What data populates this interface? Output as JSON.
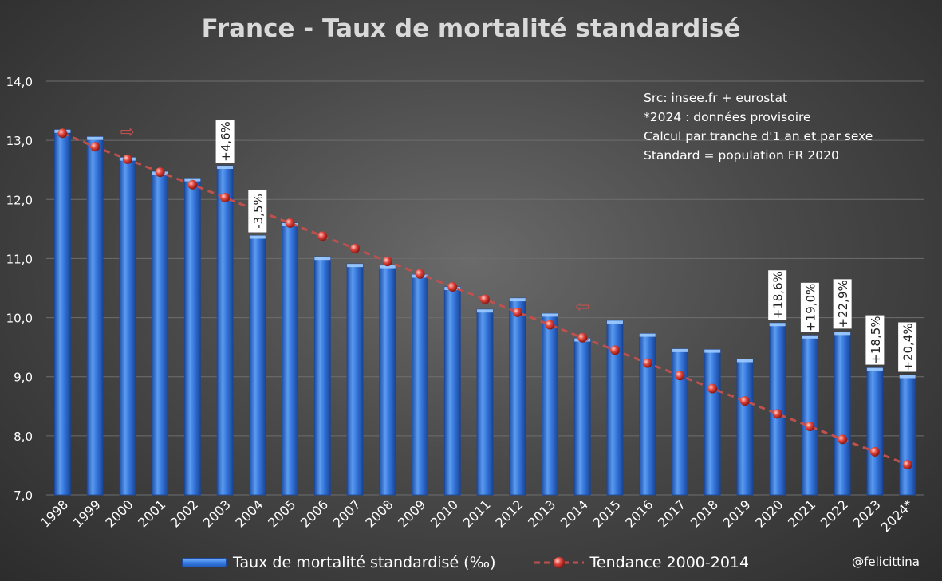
{
  "chart_data": {
    "type": "bar",
    "title": "France - Taux de mortalité standardisé",
    "xlabel": "",
    "ylabel": "",
    "ylim": [
      7.0,
      14.0
    ],
    "yticks": [
      "7,0",
      "8,0",
      "9,0",
      "10,0",
      "11,0",
      "12,0",
      "13,0",
      "14,0"
    ],
    "categories": [
      "1998",
      "1999",
      "2000",
      "2001",
      "2002",
      "2003",
      "2004",
      "2005",
      "2006",
      "2007",
      "2008",
      "2009",
      "2010",
      "2011",
      "2012",
      "2013",
      "2014",
      "2015",
      "2016",
      "2017",
      "2018",
      "2019",
      "2020",
      "2021",
      "2022",
      "2023",
      "2024*"
    ],
    "series": [
      {
        "name": "Taux de mortalité standardisé (‰)",
        "type": "bar",
        "values": [
          13.18,
          13.06,
          12.71,
          12.47,
          12.36,
          12.57,
          11.39,
          11.6,
          11.03,
          10.91,
          10.89,
          10.73,
          10.52,
          10.14,
          10.33,
          10.07,
          9.65,
          9.95,
          9.73,
          9.47,
          9.46,
          9.3,
          9.91,
          9.7,
          9.76,
          9.15,
          9.03
        ]
      },
      {
        "name": "Tendance 2000-2014",
        "type": "line",
        "values": [
          13.12,
          12.89,
          12.68,
          12.46,
          12.25,
          12.03,
          11.81,
          11.6,
          11.38,
          11.17,
          10.95,
          10.74,
          10.52,
          10.31,
          10.09,
          9.88,
          9.66,
          9.45,
          9.23,
          9.02,
          8.8,
          8.59,
          8.37,
          8.16,
          7.94,
          7.73,
          7.51
        ]
      }
    ],
    "annotations": [
      {
        "category": "2003",
        "text": "+4,6%"
      },
      {
        "category": "2004",
        "text": "-3,5%"
      },
      {
        "category": "2020",
        "text": "+18,6%"
      },
      {
        "category": "2021",
        "text": "+19,0%"
      },
      {
        "category": "2022",
        "text": "+22,9%"
      },
      {
        "category": "2023",
        "text": "+18,5%"
      },
      {
        "category": "2024*",
        "text": "+20,4%"
      }
    ],
    "markers": [
      {
        "category": "2000",
        "symbol": "⇨"
      },
      {
        "category": "2014",
        "symbol": "⇦"
      }
    ],
    "notes": [
      "Src: insee.fr + eurostat",
      "*2024 : données provisoire",
      "Calcul par tranche d'1 an et par sexe",
      "Standard = population FR 2020"
    ]
  },
  "legend": {
    "bar_label": "Taux de mortalité standardisé (‰)",
    "line_label": "Tendance 2000-2014"
  },
  "credit": "@felicittina",
  "colors": {
    "bar": "#2f6fd6",
    "bar_light": "#8fc0ff",
    "trend": "#c0504d",
    "gridline": "#6e6e6e",
    "text": "#ffffff"
  }
}
